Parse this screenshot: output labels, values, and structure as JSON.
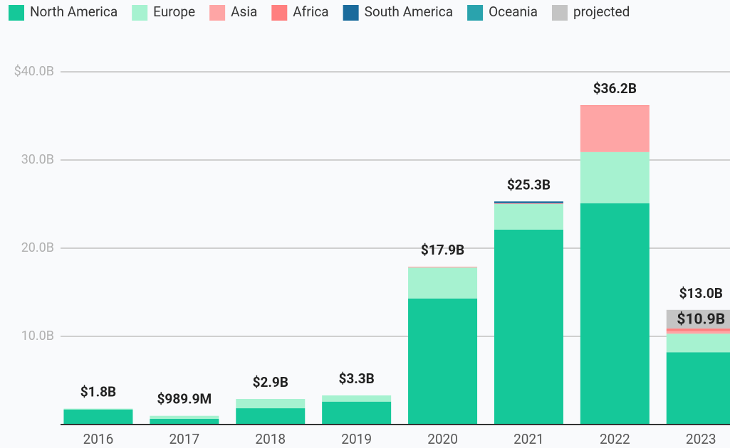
{
  "chart_data": {
    "type": "stacked_bar",
    "categories": [
      "2016",
      "2017",
      "2018",
      "2019",
      "2020",
      "2021",
      "2022",
      "2023"
    ],
    "series": [
      {
        "name": "North America",
        "color": "#15c899",
        "values": [
          1.7,
          0.65,
          1.85,
          2.6,
          14.3,
          22.1,
          25.1,
          8.2
        ]
      },
      {
        "name": "Europe",
        "color": "#a6f2d0",
        "values": [
          0.1,
          0.34,
          1.05,
          0.7,
          3.5,
          2.9,
          5.8,
          2.1
        ]
      },
      {
        "name": "Asia",
        "color": "#fea5a5",
        "values": [
          0,
          0,
          0,
          0,
          0.1,
          0.1,
          5.2,
          0.3
        ]
      },
      {
        "name": "Africa",
        "color": "#ff7f7f",
        "values": [
          0,
          0,
          0,
          0,
          0,
          0,
          0.1,
          0.3
        ]
      },
      {
        "name": "South America",
        "color": "#1a6b9c",
        "values": [
          0,
          0,
          0,
          0,
          0,
          0.2,
          0,
          0
        ]
      },
      {
        "name": "Oceania",
        "color": "#2aa3ad",
        "values": [
          0,
          0,
          0,
          0,
          0,
          0,
          0,
          0
        ]
      },
      {
        "name": "projected",
        "color": "#c4c4c4",
        "values": [
          0,
          0,
          0,
          0,
          0,
          0,
          0,
          2.1
        ]
      }
    ],
    "totals": {
      "values": [
        1.8,
        0.9899,
        2.9,
        3.3,
        17.9,
        25.3,
        36.2,
        13.0
      ],
      "value_labels": [
        "$1.8B",
        "$989.9M",
        "$2.9B",
        "$3.3B",
        "$17.9B",
        "$25.3B",
        "$36.2B",
        "$13.0B"
      ]
    },
    "annotation": {
      "value": 10.9,
      "label": "$10.9B"
    },
    "ylim": [
      0,
      40
    ],
    "yticks": [
      {
        "value": 10,
        "label": "10.0B"
      },
      {
        "value": 20,
        "label": "20.0B"
      },
      {
        "value": 30,
        "label": "30.0B"
      },
      {
        "value": 40,
        "label": "$40.0B"
      }
    ],
    "grid": true,
    "legend": "top"
  }
}
